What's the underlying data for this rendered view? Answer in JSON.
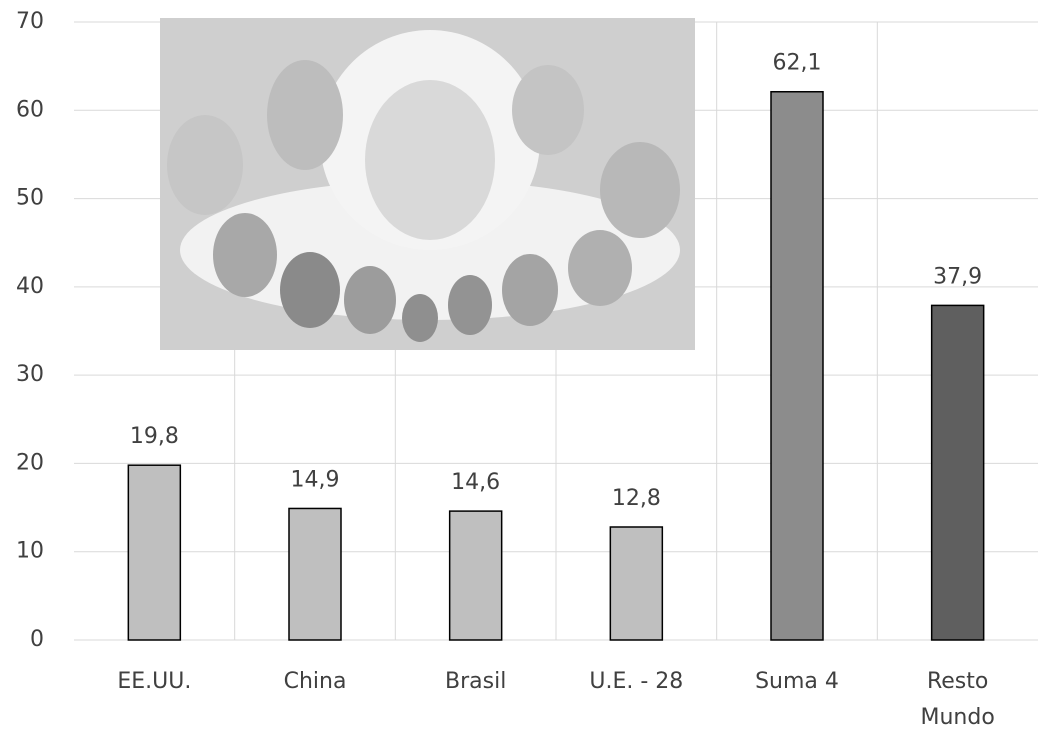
{
  "chart_data": {
    "type": "bar",
    "categories": [
      "EE.UU.",
      "China",
      "Brasil",
      "U.E. - 28",
      "Suma 4",
      "Resto Mundo"
    ],
    "values": [
      19.8,
      14.9,
      14.6,
      12.8,
      62.1,
      37.9
    ],
    "value_labels": [
      "19,8",
      "14,9",
      "14,6",
      "12,8",
      "62,1",
      "37,9"
    ],
    "colors": [
      "#bfbfbf",
      "#bfbfbf",
      "#bfbfbf",
      "#bfbfbf",
      "#8c8c8c",
      "#5f5f5f"
    ],
    "ylim": [
      0,
      70
    ],
    "yticks": [
      0,
      10,
      20,
      30,
      40,
      50,
      60,
      70
    ],
    "grid": true
  }
}
